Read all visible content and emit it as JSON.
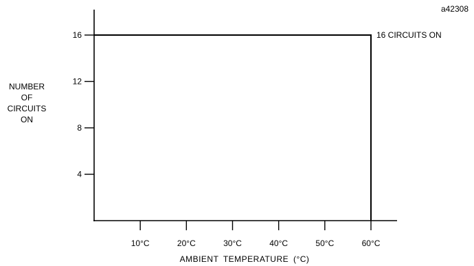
{
  "figure_id": "a42308",
  "chart_data": {
    "type": "line",
    "title": "",
    "ylabel_lines": [
      "NUMBER",
      "OF",
      "CIRCUITS",
      "ON"
    ],
    "xlabel": "AMBIENT  TEMPERATURE  (°C)",
    "x_ticks": [
      {
        "value": 10,
        "label": "10°C"
      },
      {
        "value": 20,
        "label": "20°C"
      },
      {
        "value": 30,
        "label": "30°C"
      },
      {
        "value": 40,
        "label": "40°C"
      },
      {
        "value": 50,
        "label": "50°C"
      },
      {
        "value": 60,
        "label": "60°C"
      }
    ],
    "y_ticks": [
      {
        "value": 4,
        "label": "4"
      },
      {
        "value": 8,
        "label": "8"
      },
      {
        "value": 12,
        "label": "12"
      },
      {
        "value": 16,
        "label": "16"
      }
    ],
    "xlim": [
      0,
      66
    ],
    "ylim": [
      0,
      20
    ],
    "grid": false,
    "series": [
      {
        "x": [
          0,
          60,
          60
        ],
        "y": [
          16,
          16,
          0
        ]
      }
    ],
    "annotations": [
      {
        "text": "16 CIRCUITS ON",
        "x": 60,
        "y": 16
      }
    ],
    "colors": {
      "line": "#000000",
      "axis": "#000000"
    }
  }
}
